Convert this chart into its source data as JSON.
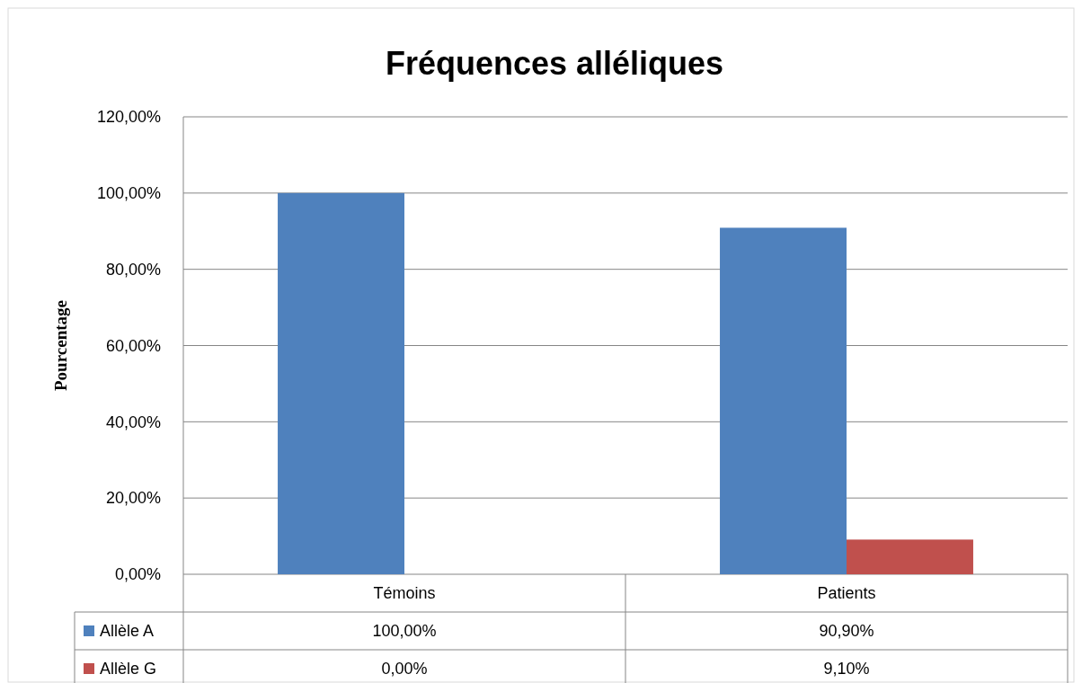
{
  "chart_data": {
    "type": "bar",
    "title": "Fréquences alléliques",
    "ylabel": "Pourcentage",
    "categories": [
      "Témoins",
      "Patients"
    ],
    "series": [
      {
        "name": "Allèle A",
        "color": "#4f81bd",
        "values": [
          100,
          90.9
        ],
        "value_labels": [
          "100,00%",
          "90,90%"
        ]
      },
      {
        "name": "Allèle G",
        "color": "#c0504d",
        "values": [
          0,
          9.1
        ],
        "value_labels": [
          "0,00%",
          "9,10%"
        ]
      }
    ],
    "ylim": [
      0,
      120
    ],
    "yticks": [
      {
        "value": 0,
        "label": "0,00%"
      },
      {
        "value": 20,
        "label": "20,00%"
      },
      {
        "value": 40,
        "label": "40,00%"
      },
      {
        "value": 60,
        "label": "60,00%"
      },
      {
        "value": 80,
        "label": "80,00%"
      },
      {
        "value": 100,
        "label": "100,00%"
      },
      {
        "value": 120,
        "label": "120,00%"
      }
    ],
    "grid": "y",
    "legend": "bottom"
  }
}
